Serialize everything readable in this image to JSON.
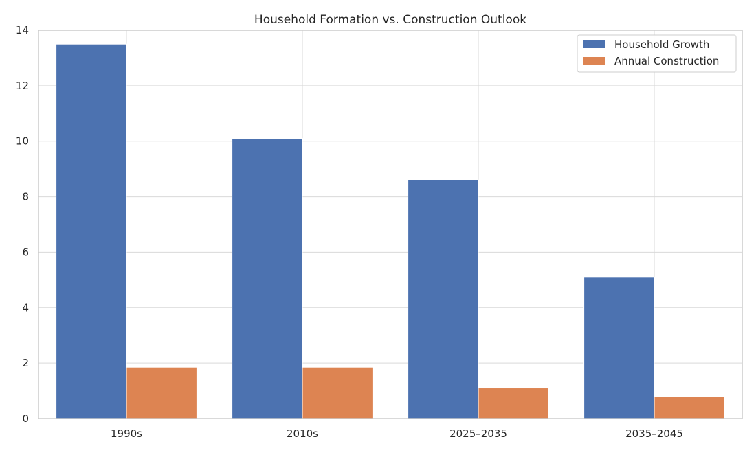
{
  "chart_data": {
    "type": "bar",
    "title": "Household Formation vs. Construction Outlook",
    "xlabel": "",
    "ylabel": "",
    "categories": [
      "1990s",
      "2010s",
      "2025–2035",
      "2035–2045"
    ],
    "series": [
      {
        "name": "Household Growth",
        "values": [
          13.5,
          10.1,
          8.6,
          5.1
        ],
        "color": "#4c72b0"
      },
      {
        "name": "Annual Construction",
        "values": [
          1.85,
          1.85,
          1.1,
          0.8
        ],
        "color": "#dd8452"
      }
    ],
    "ylim": [
      0,
      14
    ],
    "yticks": [
      0,
      2,
      4,
      6,
      8,
      10,
      12,
      14
    ],
    "grid": true,
    "legend_position": "top-right"
  }
}
